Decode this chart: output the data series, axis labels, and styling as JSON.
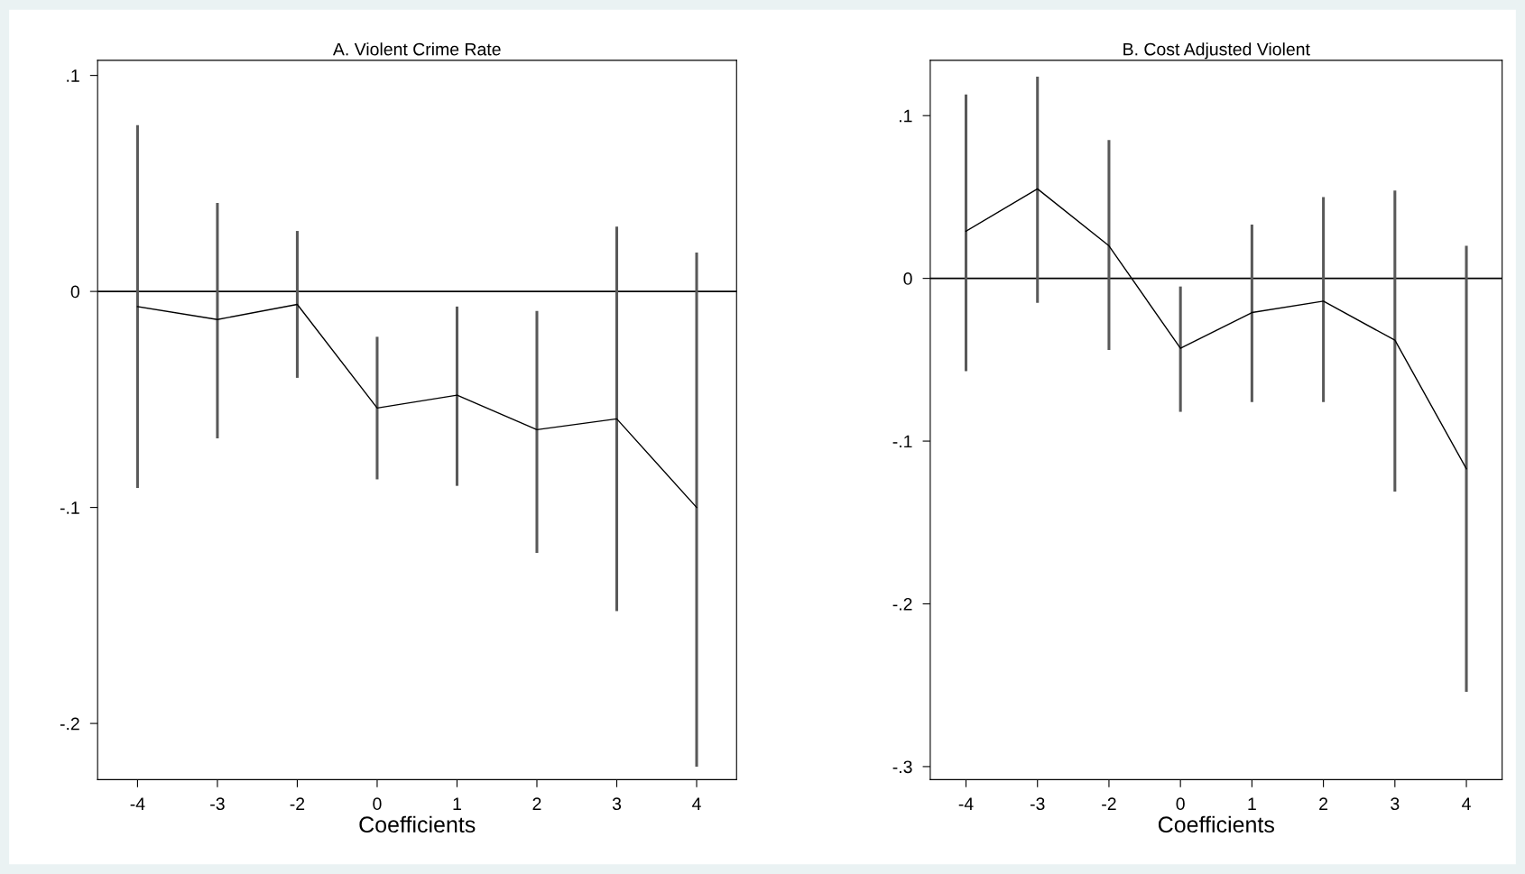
{
  "chart_data": [
    {
      "type": "line",
      "title": "A. Violent Crime Rate",
      "xlabel": "Coefficients",
      "categories": [
        "-4",
        "-3",
        "-2",
        "0",
        "1",
        "2",
        "3",
        "4"
      ],
      "series": [
        {
          "color": "#000000",
          "values": [
            -0.007,
            -0.013,
            -0.006,
            -0.054,
            -0.048,
            -0.064,
            -0.059,
            -0.1
          ],
          "errors": [
            [
              -0.091,
              0.077
            ],
            [
              -0.068,
              0.041
            ],
            [
              -0.04,
              0.028
            ],
            [
              -0.087,
              -0.021
            ],
            [
              -0.09,
              -0.007
            ],
            [
              -0.121,
              -0.009
            ],
            [
              -0.148,
              0.03
            ],
            [
              -0.22,
              0.018
            ]
          ]
        }
      ],
      "ylim": [
        -0.226,
        0.107
      ],
      "yticks": [
        {
          "value": -0.2,
          "label": "-.2"
        },
        {
          "value": -0.1,
          "label": "-.1"
        },
        0,
        {
          "value": 0.1,
          "label": ".1"
        }
      ],
      "ref_lines": [
        {
          "axis": "y",
          "value": 0,
          "color": "#000000"
        }
      ],
      "grid": false,
      "marker": "none",
      "line_style": "solid"
    },
    {
      "type": "line",
      "title": "B. Cost Adjusted Violent",
      "xlabel": "Coefficients",
      "categories": [
        "-4",
        "-3",
        "-2",
        "0",
        "1",
        "2",
        "3",
        "4"
      ],
      "series": [
        {
          "color": "#000000",
          "values": [
            0.029,
            0.055,
            0.02,
            -0.043,
            -0.021,
            -0.014,
            -0.038,
            -0.117
          ],
          "errors": [
            [
              -0.057,
              0.113
            ],
            [
              -0.015,
              0.124
            ],
            [
              -0.044,
              0.085
            ],
            [
              -0.082,
              -0.005
            ],
            [
              -0.076,
              0.033
            ],
            [
              -0.076,
              0.05
            ],
            [
              -0.131,
              0.054
            ],
            [
              -0.254,
              0.02
            ]
          ]
        }
      ],
      "ylim": [
        -0.308,
        0.134
      ],
      "yticks": [
        {
          "value": -0.3,
          "label": "-.3"
        },
        {
          "value": -0.2,
          "label": "-.2"
        },
        {
          "value": -0.1,
          "label": "-.1"
        },
        0,
        {
          "value": 0.1,
          "label": ".1"
        }
      ],
      "ref_lines": [
        {
          "axis": "y",
          "value": 0,
          "color": "#000000"
        }
      ],
      "grid": false,
      "marker": "none",
      "line_style": "solid"
    }
  ]
}
